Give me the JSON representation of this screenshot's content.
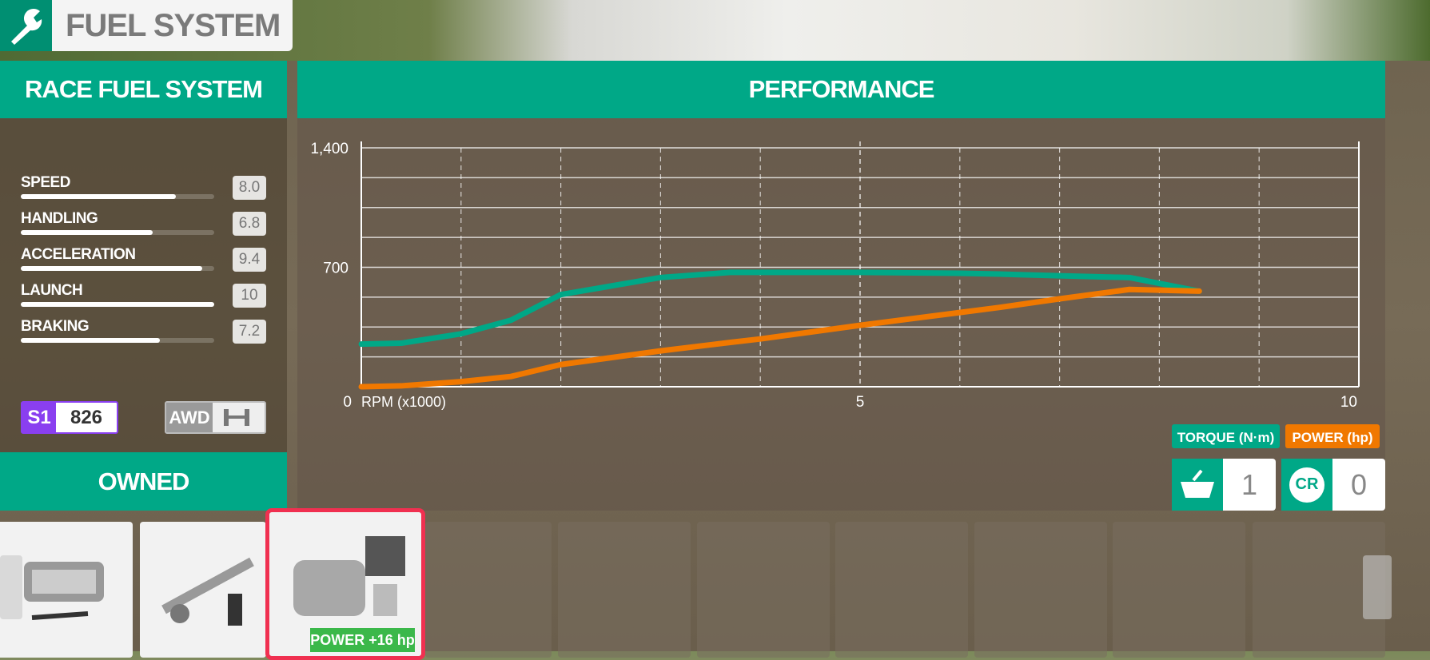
{
  "header": {
    "title": "FUEL SYSTEM"
  },
  "upgrade": {
    "name": "RACE FUEL SYSTEM"
  },
  "class_rating": {
    "class": "S1",
    "pi": 826
  },
  "drivetrain": "AWD",
  "owned_label": "OWNED",
  "inventory": {
    "count": 1,
    "currency": "CR",
    "credits": 0
  },
  "selected_part": {
    "badge": "POWER +16 hp"
  },
  "chart_data": [
    {
      "type": "hbar",
      "categories": [
        "SPEED",
        "HANDLING",
        "ACCELERATION",
        "LAUNCH",
        "BRAKING"
      ],
      "values": [
        8.0,
        6.8,
        9.4,
        10,
        7.2
      ],
      "value_labels": [
        "8.0",
        "6.8",
        "9.4",
        "10",
        "7.2"
      ],
      "xlim": [
        0,
        10
      ],
      "color": "#ffffff"
    },
    {
      "type": "line",
      "title": "PERFORMANCE",
      "x_label": "RPM (x1000)",
      "x": [
        0,
        0.4,
        1,
        1.5,
        2,
        3,
        3.7,
        4,
        5,
        6,
        6.4,
        7,
        7.7,
        8.4
      ],
      "series": [
        {
          "name": "TORQUE (N·m)",
          "color": "#00a887",
          "values": [
            250,
            255,
            310,
            390,
            540,
            640,
            670,
            670,
            670,
            665,
            660,
            650,
            640,
            560
          ]
        },
        {
          "name": "POWER (hp)",
          "color": "#f07800",
          "values": [
            0,
            5,
            30,
            60,
            130,
            210,
            260,
            280,
            360,
            435,
            465,
            515,
            570,
            560
          ]
        }
      ],
      "xlim": [
        0,
        10
      ],
      "ylim": [
        0,
        1400
      ],
      "xticks": [
        0,
        5,
        10
      ],
      "xminorticks": [
        1,
        2,
        3,
        4,
        6,
        7,
        8,
        9
      ],
      "yticks": [
        700,
        {
          "value": 1400,
          "label": "1,400"
        }
      ],
      "yminorticks": [
        175,
        350,
        525,
        875,
        1050,
        1225
      ],
      "grid": true
    }
  ]
}
